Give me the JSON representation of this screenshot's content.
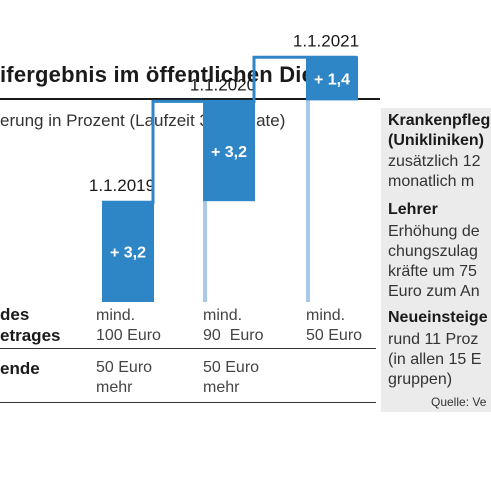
{
  "header": {
    "title": "ifergebnis im öffentlichen Dienst",
    "subtitle": "erung in Prozent (Laufzeit 33 Monate)"
  },
  "chart_data": {
    "type": "bar",
    "title": "ifergebnis im öffentlichen Dienst",
    "subtitle": "erung in Prozent (Laufzeit 33 Monate)",
    "categories": [
      "1.1.2019",
      "1.1.2020",
      "1.1.2021"
    ],
    "values": [
      3.2,
      3.2,
      1.4
    ],
    "value_labels": [
      "+ 3,2",
      "+ 3,2",
      "+ 1,4"
    ],
    "cumulative": [
      3.2,
      6.4,
      7.8
    ],
    "stacked_waterfall": true,
    "colors": {
      "increment": "#2f86c6",
      "previous": "#a9c9e8",
      "line": "#2f86c6"
    }
  },
  "table": {
    "rows": [
      {
        "label_lines": [
          "des",
          "etrages"
        ],
        "cells": [
          "mind.\n100 Euro",
          "mind.\n90  Euro",
          "mind.\n50 Euro"
        ]
      },
      {
        "label_lines": [
          "ende"
        ],
        "cells": [
          "50 Euro\nmehr",
          "50 Euro\nmehr",
          ""
        ]
      }
    ]
  },
  "sidebar": {
    "sections": [
      {
        "heading": "Krankenpfleg\n(Unikliniken)",
        "text": "zusätzlich 12\nmonatlich m"
      },
      {
        "heading": "Lehrer",
        "text": "Erhöhung de\nchungszulag\nkräfte um 75\nEuro zum An"
      },
      {
        "heading": "Neueinsteige",
        "text": "rund 11 Proz\n(in allen 15 E\ngruppen)"
      }
    ],
    "source": "Quelle: Ve"
  }
}
